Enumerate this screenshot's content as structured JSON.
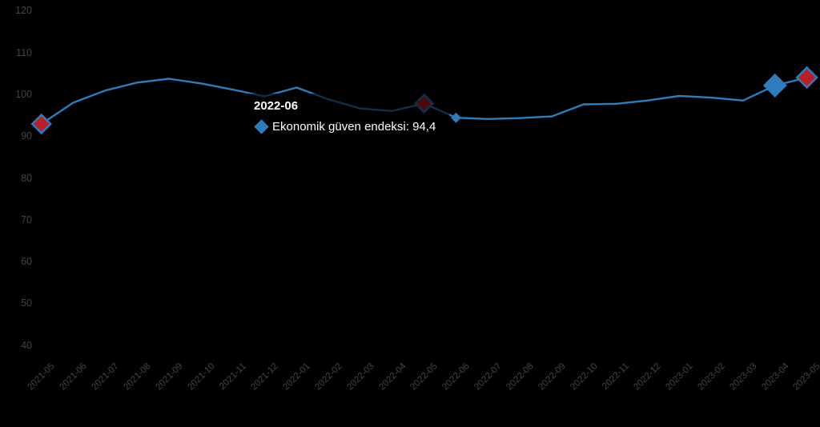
{
  "chart_data": {
    "type": "line",
    "title": "",
    "xlabel": "",
    "ylabel": "",
    "ylim": [
      40,
      120
    ],
    "yticks": [
      120,
      110,
      100,
      90,
      80,
      70,
      60,
      50,
      40
    ],
    "grid": false,
    "legend_position": "none",
    "categories": [
      "2021-05",
      "2021-06",
      "2021-07",
      "2021-08",
      "2021-09",
      "2021-10",
      "2021-11",
      "2021-12",
      "2022-01",
      "2022-02",
      "2022-03",
      "2022-04",
      "2022-05",
      "2022-06",
      "2022-07",
      "2022-08",
      "2022-09",
      "2022-10",
      "2022-11",
      "2022-12",
      "2023-01",
      "2023-02",
      "2023-03",
      "2023-04",
      "2023-05"
    ],
    "series": [
      {
        "name": "Ekonomik güven endeksi",
        "values": [
          92.9,
          98.0,
          100.9,
          102.8,
          103.7,
          102.6,
          101.1,
          99.5,
          101.6,
          98.8,
          96.6,
          96.0,
          97.8,
          94.4,
          94.1,
          94.3,
          94.7,
          97.6,
          97.7,
          98.5,
          99.6,
          99.2,
          98.5,
          102.1,
          104.0
        ]
      }
    ],
    "highlight_markers": [
      {
        "category": "2021-05",
        "index": 0,
        "color": "red",
        "size": 11.5,
        "stroked": true
      },
      {
        "category": "2022-05",
        "index": 12,
        "color": "red",
        "size": 11,
        "stroked": true
      },
      {
        "category": "2022-06",
        "index": 13,
        "color": "blue",
        "size": 6.5,
        "stroked": false
      },
      {
        "category": "2023-04",
        "index": 23,
        "color": "blue",
        "size": 15,
        "stroked": false
      },
      {
        "category": "2023-05",
        "index": 24,
        "color": "red",
        "size": 12.5,
        "stroked": true
      }
    ]
  },
  "tooltip": {
    "title": "2022-06",
    "series_label": "Ekonomik güven endeksi",
    "value": "94,4",
    "text": "Ekonomik güven endeksi: 94,4"
  },
  "colors": {
    "background": "#000000",
    "line": "#2e7cbc",
    "marker_red": "#b72028",
    "axis_label": "#454545",
    "tooltip_text": "#ffffff"
  }
}
